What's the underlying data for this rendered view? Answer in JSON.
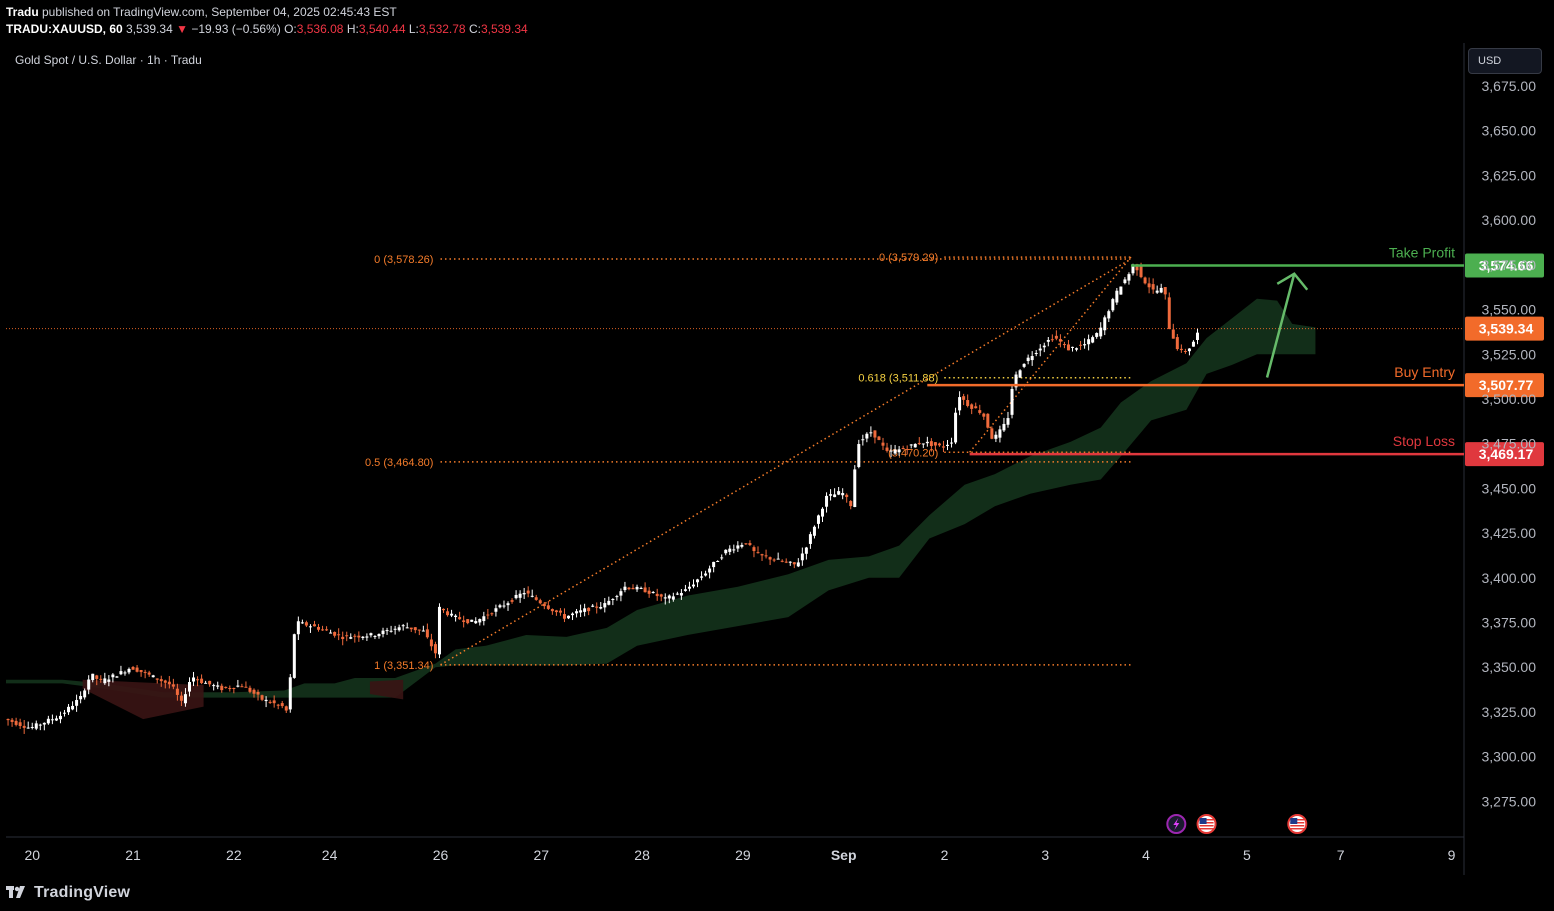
{
  "header": {
    "publisher": "Tradu",
    "published_text": " published on TradingView.com, September 04, 2025 02:45:43 EST",
    "symbol": "TRADU:XAUUSD, 60",
    "last": "3,539.34",
    "down_arrow": "▼",
    "change": "−19.93 (−0.56%)",
    "o_label": "O:",
    "o": "3,536.08",
    "h_label": "H:",
    "h": "3,540.44",
    "l_label": "L:",
    "l": "3,532.78",
    "c_label": "C:",
    "c": "3,539.34"
  },
  "legend_title": "Gold Spot / U.S. Dollar · 1h · Tradu",
  "currency_button": "USD",
  "footer": {
    "logo_text": "TradingView"
  },
  "colors": {
    "background": "#000000",
    "bull": "#ffffff",
    "bear": "#ef6a3c",
    "cloud": "#13301a",
    "cloud_bear": "#3a1414",
    "take_profit": "#4caf50",
    "buy_entry": "#f26b2a",
    "stop_loss": "#e0383e",
    "fib": "#f57c2a",
    "fib_618": "#f5d142",
    "arrow": "#66bb6a"
  },
  "chart_data": {
    "type": "candlestick",
    "title": "Gold Spot / U.S. Dollar · 1h · Tradu",
    "ylim": [
      3260,
      3700
    ],
    "y_ticks": [
      3675,
      3650,
      3625,
      3600,
      3575,
      3550,
      3525,
      3500,
      3475,
      3450,
      3425,
      3400,
      3375,
      3350,
      3325,
      3300,
      3275
    ],
    "y_tick_labels": [
      "3,675.00",
      "3,650.00",
      "3,625.00",
      "3,600.00",
      "3,575.00",
      "3,550.00",
      "3,525.00",
      "3,500.00",
      "3,475.00",
      "3,450.00",
      "3,425.00",
      "3,400.00",
      "3,375.00",
      "3,350.00",
      "3,325.00",
      "3,300.00",
      "3,275.00"
    ],
    "x_ticks": [
      {
        "label": "20",
        "t": 0.3
      },
      {
        "label": "21",
        "t": 1.3
      },
      {
        "label": "22",
        "t": 2.3
      },
      {
        "label": "24",
        "t": 3.25
      },
      {
        "label": "26",
        "t": 4.35
      },
      {
        "label": "27",
        "t": 5.35
      },
      {
        "label": "28",
        "t": 6.35
      },
      {
        "label": "29",
        "t": 7.35
      },
      {
        "label": "Sep",
        "t": 8.35,
        "bold": true
      },
      {
        "label": "2",
        "t": 9.35
      },
      {
        "label": "3",
        "t": 10.35
      },
      {
        "label": "4",
        "t": 11.35
      },
      {
        "label": "5",
        "t": 12.35
      },
      {
        "label": "7",
        "t": 13.28
      },
      {
        "label": "9",
        "t": 14.38
      }
    ],
    "x_range": [
      0,
      14.4
    ],
    "price_path": [
      [
        0.0,
        3322
      ],
      [
        0.3,
        3316
      ],
      [
        0.6,
        3323
      ],
      [
        0.8,
        3333
      ],
      [
        0.9,
        3346
      ],
      [
        1.0,
        3342
      ],
      [
        1.2,
        3347
      ],
      [
        1.3,
        3350
      ],
      [
        1.5,
        3345
      ],
      [
        1.7,
        3340
      ],
      [
        1.8,
        3330
      ],
      [
        1.9,
        3345
      ],
      [
        2.0,
        3342
      ],
      [
        2.2,
        3338
      ],
      [
        2.4,
        3340
      ],
      [
        2.6,
        3332
      ],
      [
        2.8,
        3328
      ],
      [
        2.85,
        3325
      ],
      [
        2.93,
        3375
      ],
      [
        3.1,
        3373
      ],
      [
        3.4,
        3367
      ],
      [
        3.7,
        3368
      ],
      [
        4.0,
        3373
      ],
      [
        4.2,
        3370
      ],
      [
        4.32,
        3358
      ],
      [
        4.36,
        3383
      ],
      [
        4.5,
        3378
      ],
      [
        4.7,
        3375
      ],
      [
        5.0,
        3385
      ],
      [
        5.2,
        3392
      ],
      [
        5.4,
        3385
      ],
      [
        5.6,
        3378
      ],
      [
        5.8,
        3382
      ],
      [
        6.0,
        3385
      ],
      [
        6.2,
        3395
      ],
      [
        6.4,
        3393
      ],
      [
        6.6,
        3388
      ],
      [
        6.8,
        3393
      ],
      [
        7.0,
        3403
      ],
      [
        7.2,
        3415
      ],
      [
        7.4,
        3420
      ],
      [
        7.5,
        3413
      ],
      [
        7.7,
        3410
      ],
      [
        7.9,
        3407
      ],
      [
        8.0,
        3418
      ],
      [
        8.1,
        3432
      ],
      [
        8.2,
        3445
      ],
      [
        8.35,
        3448
      ],
      [
        8.45,
        3440
      ],
      [
        8.5,
        3475
      ],
      [
        8.65,
        3482
      ],
      [
        8.8,
        3470
      ],
      [
        8.95,
        3472
      ],
      [
        9.15,
        3476
      ],
      [
        9.35,
        3473
      ],
      [
        9.45,
        3477
      ],
      [
        9.5,
        3503
      ],
      [
        9.6,
        3497
      ],
      [
        9.75,
        3492
      ],
      [
        9.85,
        3477
      ],
      [
        9.95,
        3484
      ],
      [
        10.0,
        3490
      ],
      [
        10.05,
        3510
      ],
      [
        10.15,
        3520
      ],
      [
        10.3,
        3528
      ],
      [
        10.45,
        3535
      ],
      [
        10.6,
        3528
      ],
      [
        10.75,
        3530
      ],
      [
        10.9,
        3537
      ],
      [
        11.0,
        3550
      ],
      [
        11.1,
        3562
      ],
      [
        11.2,
        3570
      ],
      [
        11.25,
        3576
      ],
      [
        11.35,
        3566
      ],
      [
        11.45,
        3560
      ],
      [
        11.55,
        3562
      ],
      [
        11.6,
        3540
      ],
      [
        11.7,
        3526
      ],
      [
        11.78,
        3527
      ],
      [
        11.85,
        3533
      ],
      [
        11.9,
        3539
      ]
    ],
    "series_last_price": 3539.34,
    "cloud_upper": [
      [
        0.0,
        3343
      ],
      [
        0.6,
        3343
      ],
      [
        1.0,
        3341
      ],
      [
        1.6,
        3336
      ],
      [
        2.3,
        3336
      ],
      [
        2.8,
        3337
      ],
      [
        3.0,
        3341
      ],
      [
        3.3,
        3341
      ],
      [
        3.5,
        3344
      ],
      [
        3.9,
        3344
      ],
      [
        4.3,
        3352
      ],
      [
        4.5,
        3360
      ],
      [
        4.8,
        3362
      ],
      [
        5.2,
        3368
      ],
      [
        5.6,
        3367
      ],
      [
        6.0,
        3372
      ],
      [
        6.3,
        3382
      ],
      [
        6.8,
        3390
      ],
      [
        7.3,
        3395
      ],
      [
        7.8,
        3402
      ],
      [
        8.2,
        3410
      ],
      [
        8.6,
        3412
      ],
      [
        8.9,
        3418
      ],
      [
        9.2,
        3435
      ],
      [
        9.55,
        3452
      ],
      [
        9.85,
        3458
      ],
      [
        10.2,
        3468
      ],
      [
        10.6,
        3476
      ],
      [
        10.9,
        3484
      ],
      [
        11.1,
        3498
      ],
      [
        11.4,
        3510
      ],
      [
        11.75,
        3520
      ],
      [
        11.95,
        3534
      ],
      [
        12.2,
        3545
      ],
      [
        12.45,
        3556
      ],
      [
        12.65,
        3555
      ],
      [
        12.8,
        3542
      ],
      [
        13.03,
        3540
      ]
    ],
    "cloud_lower": [
      [
        0.0,
        3341
      ],
      [
        0.6,
        3341
      ],
      [
        1.0,
        3338
      ],
      [
        1.6,
        3333
      ],
      [
        2.3,
        3333
      ],
      [
        2.8,
        3333
      ],
      [
        3.0,
        3333
      ],
      [
        3.3,
        3333
      ],
      [
        3.5,
        3333
      ],
      [
        3.9,
        3333
      ],
      [
        4.3,
        3350
      ],
      [
        4.5,
        3351
      ],
      [
        4.8,
        3351
      ],
      [
        5.2,
        3351
      ],
      [
        5.6,
        3351
      ],
      [
        6.0,
        3352
      ],
      [
        6.3,
        3362
      ],
      [
        6.8,
        3368
      ],
      [
        7.3,
        3373
      ],
      [
        7.8,
        3378
      ],
      [
        8.2,
        3393
      ],
      [
        8.6,
        3400
      ],
      [
        8.9,
        3400
      ],
      [
        9.2,
        3422
      ],
      [
        9.55,
        3430
      ],
      [
        9.85,
        3440
      ],
      [
        10.2,
        3447
      ],
      [
        10.6,
        3452
      ],
      [
        10.9,
        3455
      ],
      [
        11.1,
        3468
      ],
      [
        11.4,
        3488
      ],
      [
        11.75,
        3494
      ],
      [
        11.95,
        3514
      ],
      [
        12.2,
        3519
      ],
      [
        12.45,
        3525
      ],
      [
        12.65,
        3525
      ],
      [
        12.8,
        3525
      ],
      [
        13.03,
        3525
      ]
    ],
    "fib_left": {
      "from_t": 4.35,
      "to_t": 11.2,
      "levels": [
        {
          "label": "0 (3,578.26)",
          "price": 3578.26
        },
        {
          "label": "0.5 (3,464.80)",
          "price": 3464.8
        },
        {
          "label": "1 (3,351.34)",
          "price": 3351.34
        }
      ],
      "trend_from": {
        "t": 4.35,
        "price": 3351.34
      },
      "trend_to": {
        "t": 11.2,
        "price": 3578.26
      }
    },
    "fib_right": {
      "from_t": 9.1,
      "to_t": 11.2,
      "levels": [
        {
          "label": "0 (3,579.29)",
          "price": 3579.29
        },
        {
          "label": "0.618 (3,511.88)",
          "price": 3511.88,
          "highlight": true
        },
        {
          "label": "(3,470.20)",
          "price": 3470.2
        }
      ],
      "trend_from": {
        "t": 9.6,
        "price": 3470.2
      },
      "trend_to": {
        "t": 11.2,
        "price": 3579.29
      }
    },
    "horizontal_levels": [
      {
        "name": "Take Profit",
        "price": 3574.66,
        "price_label": "3,574.66",
        "color": "take_profit",
        "from_t": 11.2
      },
      {
        "name": "Buy Entry",
        "price": 3507.77,
        "price_label": "3,507.77",
        "color": "buy_entry",
        "from_t": 9.1
      },
      {
        "name": "Stop Loss",
        "price": 3469.17,
        "price_label": "3,469.17",
        "color": "stop_loss",
        "from_t": 9.6
      }
    ],
    "last_price_label": "3,539.34",
    "projection_arrow": {
      "from": {
        "t": 12.55,
        "price": 3512
      },
      "to": {
        "t": 12.82,
        "price": 3570
      }
    },
    "event_markers": [
      {
        "name": "lightning-event-icon",
        "t": 11.65
      },
      {
        "name": "us-flag-event-icon",
        "t": 11.95
      },
      {
        "name": "us-flag-event-icon",
        "t": 12.85
      }
    ]
  }
}
